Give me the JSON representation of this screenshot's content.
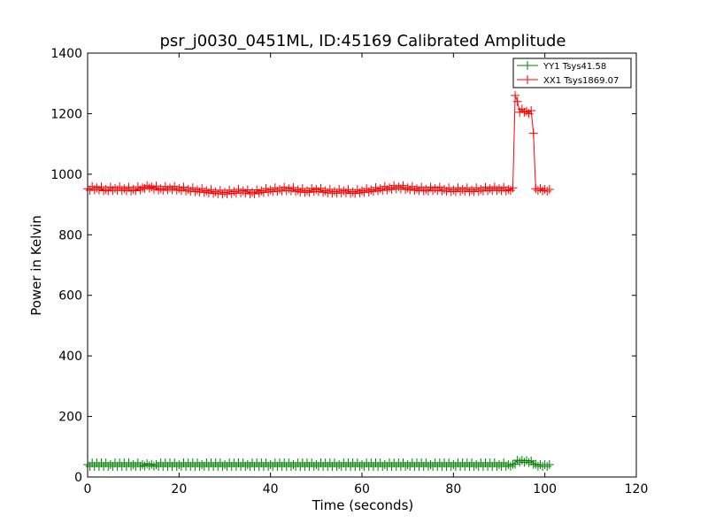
{
  "chart_data": {
    "type": "line",
    "title": "psr_j0030_0451ML, ID:45169 Calibrated Amplitude",
    "xlabel": "Time (seconds)",
    "ylabel": "Power in Kelvin",
    "xlim": [
      0,
      120
    ],
    "ylim": [
      0,
      1400
    ],
    "xticks": [
      "0",
      "20",
      "40",
      "60",
      "80",
      "100",
      "120"
    ],
    "yticks": [
      "0",
      "200",
      "400",
      "600",
      "800",
      "1000",
      "1200",
      "1400"
    ],
    "grid": false,
    "legend_position": "top-right",
    "marker": "plus",
    "series": [
      {
        "name": "YY1 Tsys41.58",
        "color": "#008000",
        "x": [
          0,
          5,
          10,
          12,
          13,
          14,
          15,
          20,
          25,
          30,
          35,
          40,
          45,
          50,
          55,
          60,
          65,
          70,
          75,
          80,
          85,
          90,
          92,
          93,
          94,
          95,
          96,
          97,
          98,
          99,
          100,
          101
        ],
        "y": [
          41,
          41,
          41,
          41,
          44,
          42,
          41,
          41,
          41,
          41,
          41,
          41,
          41,
          41,
          41,
          41,
          41,
          41,
          41,
          41,
          41,
          41,
          41,
          42,
          55,
          55,
          54,
          53,
          42,
          41,
          41,
          41
        ]
      },
      {
        "name": "XX1 Tsys1869.07",
        "color": "#ff0000",
        "x": [
          0,
          2,
          4,
          6,
          8,
          10,
          12,
          13,
          14,
          16,
          18,
          20,
          22,
          24,
          26,
          28,
          30,
          32,
          34,
          36,
          38,
          40,
          42,
          44,
          46,
          48,
          50,
          52,
          54,
          56,
          58,
          60,
          62,
          64,
          66,
          68,
          70,
          72,
          74,
          76,
          78,
          80,
          82,
          84,
          86,
          88,
          90,
          92,
          93,
          93.5,
          94,
          94.5,
          95,
          95.5,
          96,
          96.5,
          97,
          97.5,
          98,
          99,
          100,
          101
        ],
        "y": [
          952,
          955,
          950,
          953,
          952,
          950,
          955,
          962,
          958,
          952,
          955,
          953,
          950,
          948,
          945,
          942,
          940,
          943,
          945,
          940,
          945,
          948,
          950,
          952,
          948,
          945,
          950,
          945,
          943,
          945,
          942,
          945,
          948,
          952,
          955,
          958,
          955,
          952,
          950,
          953,
          950,
          948,
          950,
          948,
          950,
          952,
          952,
          950,
          955,
          1260,
          1240,
          1205,
          1215,
          1205,
          1208,
          1200,
          1210,
          1135,
          952,
          953,
          950,
          950
        ]
      }
    ]
  }
}
